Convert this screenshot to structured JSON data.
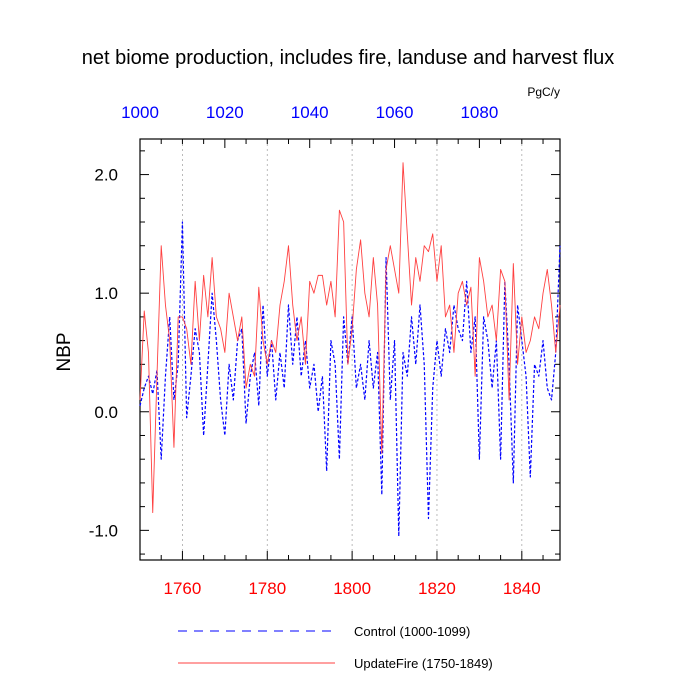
{
  "colors": {
    "bottom_axis": "#ff0000",
    "top_axis": "#0000ff",
    "control_line": "#0000ff",
    "updatefire_line": "#ff4040",
    "grid": "#aaaaaa"
  },
  "chart_data": {
    "type": "line",
    "title": "net biome production, includes fire, landuse and harvest flux",
    "units": "PgC/y",
    "ylabel": "NBP",
    "xlabel": "",
    "grid": "vertical dotted lines at bottom-axis major ticks",
    "legend_placement": "bottom",
    "ylim": [
      -1.25,
      2.3
    ],
    "y_ticks": [
      -1.0,
      0.0,
      1.0,
      2.0
    ],
    "y_tick_labels": [
      "-1.0",
      "0.0",
      "1.0",
      "2.0"
    ],
    "x_bottom": {
      "range": [
        1750,
        1849
      ],
      "ticks": [
        1760,
        1780,
        1800,
        1820,
        1840
      ],
      "tick_labels": [
        "1760",
        "1780",
        "1800",
        "1820",
        "1840"
      ]
    },
    "x_top": {
      "range": [
        1000,
        1099
      ],
      "ticks": [
        1000,
        1020,
        1040,
        1060,
        1080
      ],
      "tick_labels": [
        "1000",
        "1020",
        "1040",
        "1060",
        "1080"
      ]
    },
    "series": [
      {
        "name": "Control (1000-1099)",
        "axis": "top",
        "style": "dashed",
        "x": [
          1000,
          1001,
          1002,
          1003,
          1004,
          1005,
          1006,
          1007,
          1008,
          1009,
          1010,
          1011,
          1012,
          1013,
          1014,
          1015,
          1016,
          1017,
          1018,
          1019,
          1020,
          1021,
          1022,
          1023,
          1024,
          1025,
          1026,
          1027,
          1028,
          1029,
          1030,
          1031,
          1032,
          1033,
          1034,
          1035,
          1036,
          1037,
          1038,
          1039,
          1040,
          1041,
          1042,
          1043,
          1044,
          1045,
          1046,
          1047,
          1048,
          1049,
          1050,
          1051,
          1052,
          1053,
          1054,
          1055,
          1056,
          1057,
          1058,
          1059,
          1060,
          1061,
          1062,
          1063,
          1064,
          1065,
          1066,
          1067,
          1068,
          1069,
          1070,
          1071,
          1072,
          1073,
          1074,
          1075,
          1076,
          1077,
          1078,
          1079,
          1080,
          1081,
          1082,
          1083,
          1084,
          1085,
          1086,
          1087,
          1088,
          1089,
          1090,
          1091,
          1092,
          1093,
          1094,
          1095,
          1096,
          1097,
          1098,
          1099
        ],
        "values": [
          0.05,
          0.2,
          0.3,
          0.15,
          0.35,
          -0.4,
          0.3,
          0.8,
          0.1,
          0.4,
          1.6,
          -0.05,
          0.3,
          0.7,
          0.5,
          -0.2,
          0.4,
          1.0,
          0.6,
          0.1,
          -0.2,
          0.4,
          0.1,
          0.6,
          0.7,
          -0.1,
          0.3,
          0.5,
          0.05,
          0.9,
          0.3,
          0.6,
          0.1,
          0.5,
          0.2,
          0.9,
          0.4,
          0.8,
          0.3,
          0.6,
          0.2,
          0.4,
          0.0,
          0.3,
          -0.5,
          0.6,
          0.4,
          -0.4,
          0.8,
          0.4,
          0.8,
          0.2,
          0.4,
          0.1,
          0.6,
          0.2,
          0.5,
          -0.7,
          1.3,
          0.1,
          0.6,
          -1.05,
          0.5,
          0.3,
          0.8,
          0.4,
          0.9,
          0.4,
          -0.9,
          0.2,
          0.6,
          0.3,
          0.7,
          0.5,
          0.9,
          0.7,
          0.6,
          1.1,
          0.5,
          0.8,
          -0.4,
          0.8,
          0.6,
          0.2,
          0.6,
          -0.4,
          1.1,
          0.4,
          -0.6,
          0.9,
          0.6,
          0.3,
          -0.55,
          0.4,
          0.3,
          0.6,
          0.2,
          0.1,
          0.5,
          1.4
        ]
      },
      {
        "name": "UpdateFire (1750-1849)",
        "axis": "bottom",
        "style": "solid",
        "x": [
          1750,
          1751,
          1752,
          1753,
          1754,
          1755,
          1756,
          1757,
          1758,
          1759,
          1760,
          1761,
          1762,
          1763,
          1764,
          1765,
          1766,
          1767,
          1768,
          1769,
          1770,
          1771,
          1772,
          1773,
          1774,
          1775,
          1776,
          1777,
          1778,
          1779,
          1780,
          1781,
          1782,
          1783,
          1784,
          1785,
          1786,
          1787,
          1788,
          1789,
          1790,
          1791,
          1792,
          1793,
          1794,
          1795,
          1796,
          1797,
          1798,
          1799,
          1800,
          1801,
          1802,
          1803,
          1804,
          1805,
          1806,
          1807,
          1808,
          1809,
          1810,
          1811,
          1812,
          1813,
          1814,
          1815,
          1816,
          1817,
          1818,
          1819,
          1820,
          1821,
          1822,
          1823,
          1824,
          1825,
          1826,
          1827,
          1828,
          1829,
          1830,
          1831,
          1832,
          1833,
          1834,
          1835,
          1836,
          1837,
          1838,
          1839,
          1840,
          1841,
          1842,
          1843,
          1844,
          1845,
          1846,
          1847,
          1848,
          1849
        ],
        "values": [
          0.1,
          0.85,
          0.5,
          -0.85,
          0.3,
          1.4,
          0.9,
          0.6,
          -0.3,
          0.8,
          0.8,
          0.7,
          0.4,
          1.1,
          0.6,
          1.15,
          0.8,
          1.3,
          0.8,
          0.7,
          0.5,
          1.0,
          0.8,
          0.6,
          0.8,
          0.2,
          0.4,
          0.3,
          1.05,
          0.6,
          0.4,
          0.6,
          0.5,
          0.9,
          1.1,
          1.4,
          0.9,
          0.6,
          0.8,
          0.4,
          1.1,
          1.0,
          1.15,
          1.15,
          0.9,
          1.1,
          0.8,
          1.7,
          1.6,
          0.4,
          0.7,
          1.2,
          1.45,
          1.0,
          0.8,
          1.3,
          0.9,
          -0.35,
          1.2,
          1.4,
          1.2,
          1.0,
          2.1,
          1.5,
          0.9,
          1.3,
          1.1,
          1.4,
          1.35,
          1.5,
          1.1,
          1.4,
          0.8,
          0.9,
          0.5,
          1.0,
          1.1,
          0.9,
          1.05,
          0.3,
          1.3,
          1.1,
          0.8,
          0.9,
          0.6,
          1.2,
          1.1,
          0.1,
          1.25,
          0.4,
          0.8,
          0.5,
          0.6,
          0.8,
          0.7,
          1.0,
          1.2,
          0.9,
          0.5,
          0.9
        ]
      }
    ]
  }
}
